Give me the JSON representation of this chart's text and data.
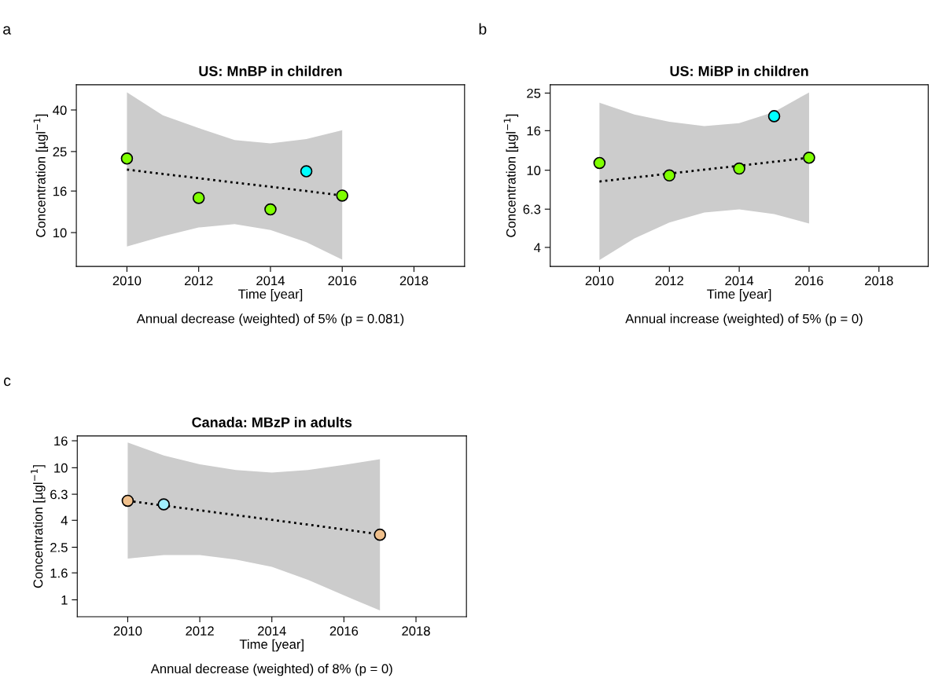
{
  "chart_data": [
    {
      "type": "scatter",
      "title": "US: MnBP in children",
      "xlabel": "Time [year]",
      "ylabel": "Concentration [µgl$^{−1}$]",
      "annotations": [
        "a",
        "Annual decrease (weighted) of 5% (p = 0.081)"
      ],
      "log": "y",
      "grid": false,
      "legend": false,
      "marker": "circle",
      "xlim": [
        2008.59,
        2019.41
      ],
      "xticks": [
        2010,
        2012,
        2014,
        2016,
        2018
      ],
      "ylim": [
        6.82,
        53.2
      ],
      "yticks": [
        10,
        16,
        25,
        40
      ],
      "series": [
        {
          "type": "line",
          "line_style": "dotted",
          "marker": "none",
          "color": "#000000",
          "x": [
            2010,
            2011,
            2012,
            2013,
            2014,
            2015,
            2016
          ],
          "values": [
            20.4,
            19.4,
            18.5,
            17.6,
            16.8,
            16.0,
            15.2
          ],
          "upper": [
            48.8,
            37.7,
            32.6,
            28.5,
            27.4,
            28.8,
            31.8
          ],
          "lower": [
            8.55,
            9.6,
            10.6,
            11.0,
            10.3,
            8.97,
            7.36
          ]
        },
        {
          "x": [
            2010,
            2012,
            2014,
            2015,
            2016
          ],
          "values": [
            23.1,
            14.8,
            13.0,
            20.0,
            15.2
          ],
          "colors": [
            "#7fff00",
            "#7fff00",
            "#7fff00",
            "#00ffff",
            "#7fff00"
          ]
        }
      ]
    },
    {
      "type": "scatter",
      "title": "US: MiBP in children",
      "xlabel": "Time [year]",
      "ylabel": "Concentration [µgl$^{−1}$]",
      "annotations": [
        "b",
        "Annual increase (weighted) of 5% (p = 0)"
      ],
      "log": "y",
      "grid": false,
      "legend": false,
      "marker": "circle",
      "xlim": [
        2008.59,
        2019.41
      ],
      "xticks": [
        2010,
        2012,
        2014,
        2016,
        2018
      ],
      "ylim": [
        3.19,
        27.6
      ],
      "yticks": [
        4,
        6.3,
        10,
        16,
        25
      ],
      "series": [
        {
          "type": "line",
          "line_style": "dotted",
          "marker": "none",
          "color": "#000000",
          "x": [
            2010,
            2011,
            2012,
            2013,
            2014,
            2015,
            2016
          ],
          "values": [
            8.75,
            9.17,
            9.61,
            10.07,
            10.55,
            11.06,
            11.6
          ],
          "upper": [
            22.3,
            19.4,
            17.8,
            16.9,
            17.5,
            20.0,
            25.2
          ],
          "lower": [
            3.44,
            4.45,
            5.37,
            6.05,
            6.28,
            5.94,
            5.31
          ]
        },
        {
          "x": [
            2010,
            2012,
            2014,
            2015,
            2016
          ],
          "values": [
            10.9,
            9.4,
            10.2,
            19.0,
            11.6
          ],
          "colors": [
            "#7fff00",
            "#7fff00",
            "#7fff00",
            "#00ffff",
            "#7fff00"
          ]
        }
      ]
    },
    {
      "type": "scatter",
      "title": "Canada: MBzP in adults",
      "xlabel": "Time [year]",
      "ylabel": "Concentration [µgl$^{−1}$]",
      "annotations": [
        "c",
        "Annual decrease (weighted) of 8% (p = 0)"
      ],
      "log": "y",
      "grid": false,
      "legend": false,
      "marker": "circle",
      "xlim": [
        2008.6,
        2019.4
      ],
      "xticks": [
        2010,
        2012,
        2014,
        2016,
        2018
      ],
      "ylim": [
        0.745,
        17.4
      ],
      "yticks": [
        1,
        1.6,
        2.5,
        4,
        6.3,
        10,
        16
      ],
      "series": [
        {
          "type": "line",
          "line_style": "dotted",
          "marker": "none",
          "color": "#000000",
          "x": [
            2010,
            2011,
            2012,
            2013,
            2014,
            2015,
            2016,
            2017
          ],
          "values": [
            5.62,
            5.17,
            4.76,
            4.38,
            4.03,
            3.71,
            3.41,
            3.13
          ],
          "upper": [
            15.5,
            12.4,
            10.6,
            9.6,
            9.2,
            9.6,
            10.5,
            11.6
          ],
          "lower": [
            2.05,
            2.18,
            2.18,
            2.02,
            1.78,
            1.42,
            1.08,
            0.83
          ]
        },
        {
          "x": [
            2010,
            2011,
            2017
          ],
          "values": [
            5.62,
            5.28,
            3.11
          ],
          "colors": [
            "#f0c08c",
            "#a0f0ff",
            "#f0c08c"
          ]
        }
      ]
    }
  ]
}
